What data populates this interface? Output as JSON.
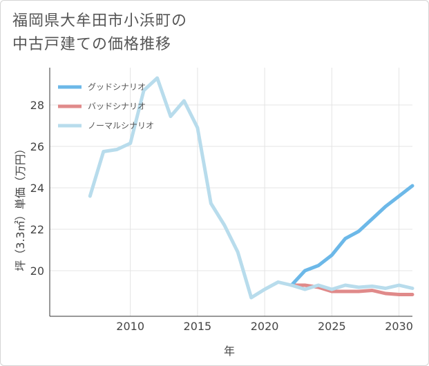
{
  "header": {
    "title_line1": "福岡県大牟田市小浜町の",
    "title_line2": "中古戸建ての価格推移"
  },
  "chart_data": {
    "type": "line",
    "title": "福岡県大牟田市小浜町の中古戸建ての価格推移",
    "xlabel": "年",
    "ylabel": "坪（3.3㎡）単価（万円）",
    "xlim": [
      2004,
      2031
    ],
    "ylim": [
      17.8,
      29.8
    ],
    "xticks": [
      2010,
      2015,
      2020,
      2025,
      2030
    ],
    "yticks": [
      20,
      22,
      24,
      26,
      28
    ],
    "legend_position": "top-left",
    "series": [
      {
        "name": "グッドシナリオ",
        "color": "#6cb8e8",
        "x": [
          2022,
          2023,
          2024,
          2025,
          2026,
          2027,
          2028,
          2029,
          2030,
          2031
        ],
        "y": [
          19.3,
          20.0,
          20.25,
          20.75,
          21.55,
          21.9,
          22.5,
          23.1,
          23.6,
          24.1
        ]
      },
      {
        "name": "バッドシナリオ",
        "color": "#e08a8a",
        "x": [
          2022,
          2023,
          2024,
          2025,
          2026,
          2027,
          2028,
          2029,
          2030,
          2031
        ],
        "y": [
          19.3,
          19.3,
          19.2,
          19.0,
          19.0,
          19.0,
          19.05,
          18.9,
          18.85,
          18.85
        ]
      },
      {
        "name": "ノーマルシナリオ",
        "color": "#b8dcec",
        "x": [
          2007,
          2008,
          2009,
          2010,
          2011,
          2012,
          2013,
          2014,
          2015,
          2016,
          2017,
          2018,
          2019,
          2020,
          2021,
          2022,
          2023,
          2024,
          2025,
          2026,
          2027,
          2028,
          2029,
          2030,
          2031
        ],
        "y": [
          23.6,
          25.75,
          25.85,
          26.15,
          28.7,
          29.3,
          27.45,
          28.2,
          26.9,
          23.25,
          22.2,
          20.9,
          18.7,
          19.1,
          19.45,
          19.3,
          19.1,
          19.3,
          19.1,
          19.3,
          19.2,
          19.25,
          19.15,
          19.3,
          19.15
        ]
      }
    ]
  }
}
